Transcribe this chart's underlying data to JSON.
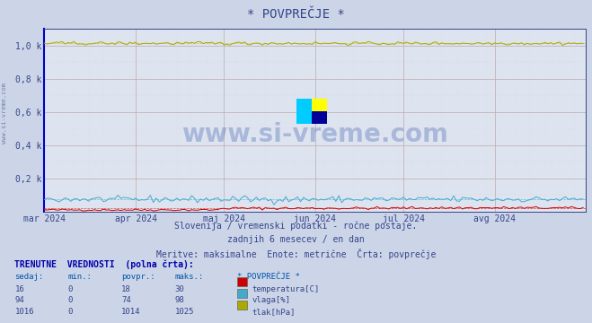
{
  "title": "* POVPREČJE *",
  "subtitle1": "Slovenija / vremenski podatki - ročne postaje.",
  "subtitle2": "zadnjih 6 mesecev / en dan",
  "subtitle3": "Meritve: maksimalne  Enote: metrične  Črta: povprečje",
  "background_color": "#ccd5e8",
  "plot_bg_color": "#dde4f0",
  "grid_color_h": "#bbaaaa",
  "grid_color_v": "#bbaaaa",
  "grid_minor_color": "#ddcccc",
  "x_tick_labels": [
    "mar 2024",
    "apr 2024",
    "maj 2024",
    "jun 2024",
    "jul 2024",
    "avg 2024"
  ],
  "x_tick_positions": [
    0,
    31,
    61,
    92,
    122,
    153
  ],
  "ylim": [
    0,
    1100
  ],
  "xlim": [
    0,
    184
  ],
  "yticks": [
    0,
    200,
    400,
    600,
    800,
    1000
  ],
  "ytick_labels": [
    "",
    "0,2 k",
    "0,4 k",
    "0,6 k",
    "0,8 k",
    "1,0 k"
  ],
  "temp_color": "#cc0000",
  "vlaga_color": "#44aacc",
  "tlak_color": "#aaaa00",
  "temp_avg_color": "#dd4444",
  "vlaga_avg_color": "#66bbdd",
  "tlak_avg_color": "#cccc44",
  "watermark": "www.si-vreme.com",
  "watermark_color": "#3355aa",
  "table_header": "TRENUTNE  VREDNOSTI  (polna črta):",
  "col_headers": [
    "sedaj:",
    "min.:",
    "povpr.:",
    "maks.:",
    "* POVPREČJE *"
  ],
  "row1": [
    "16",
    "0",
    "18",
    "30",
    "temperatura[C]",
    "#cc0000"
  ],
  "row2": [
    "94",
    "0",
    "74",
    "98",
    "vlaga[%]",
    "#44aacc"
  ],
  "row3": [
    "1016",
    "0",
    "1014",
    "1025",
    "tlak[hPa]",
    "#aaaa00"
  ],
  "n_points": 184,
  "temp_avg": 18,
  "vlaga_avg": 74,
  "tlak_avg": 1014
}
